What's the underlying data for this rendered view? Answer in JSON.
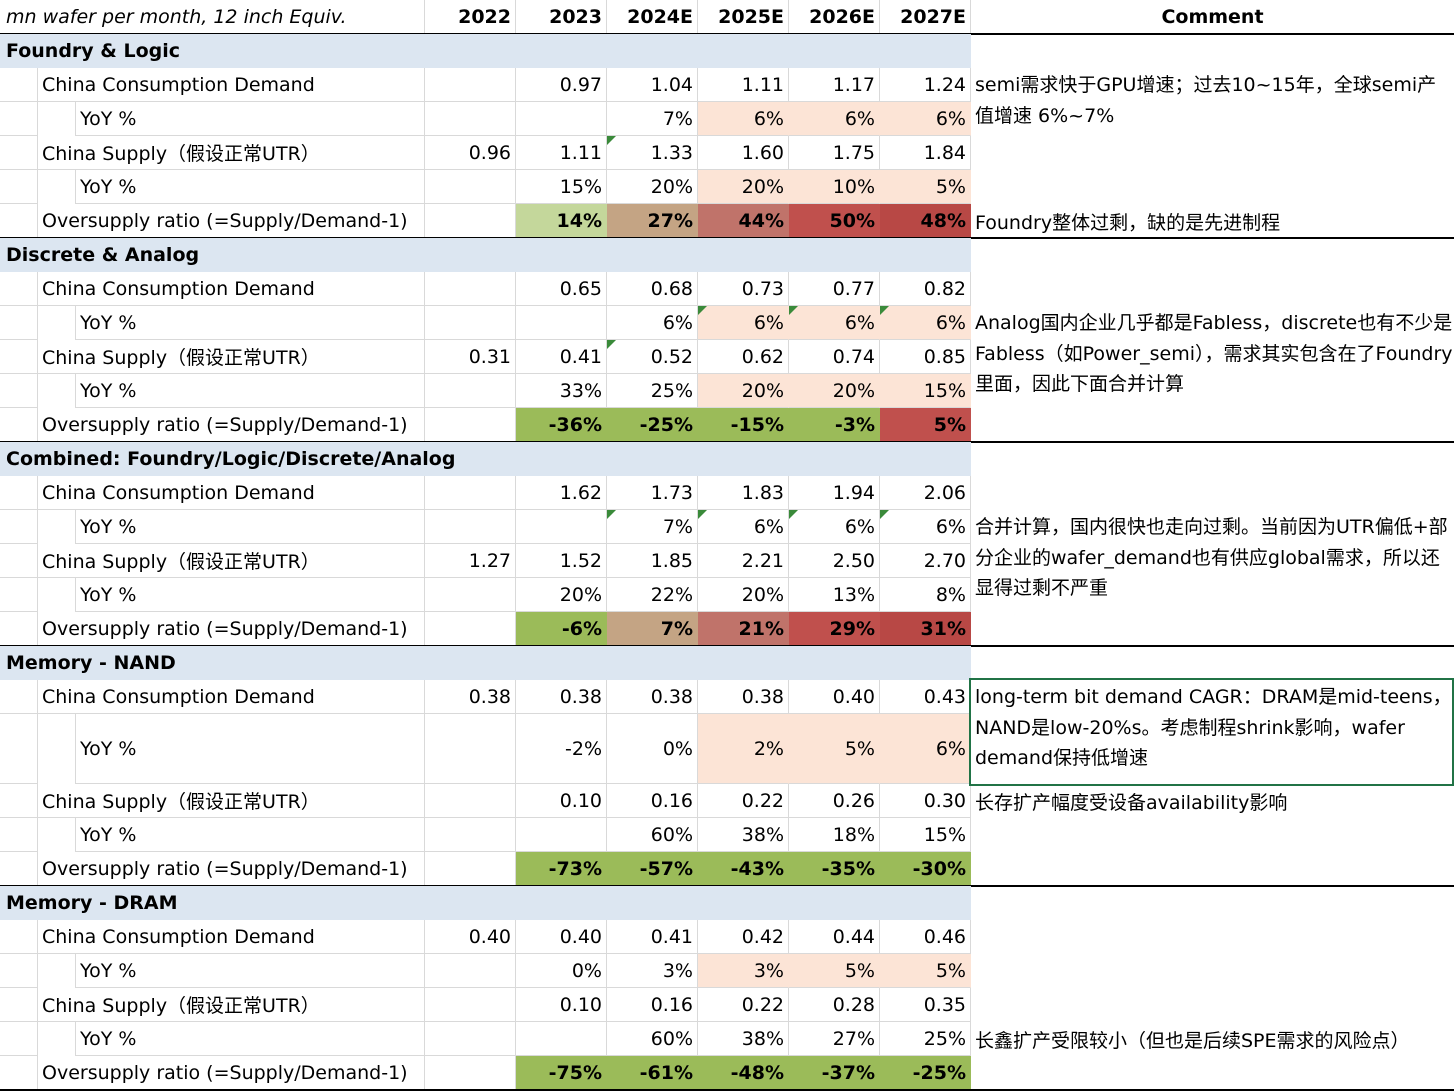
{
  "header": {
    "unit_label": "mn wafer per month, 12 inch Equiv.",
    "years": [
      "2022",
      "2023",
      "2024E",
      "2025E",
      "2026E",
      "2027E"
    ],
    "comment_label": "Comment"
  },
  "colors": {
    "section_bg": "#dce6f1",
    "light_peach": "#fce4d6",
    "green_light": "#c4d79b",
    "green": "#9bbb59",
    "tan": "#c4a484",
    "rose": "#c0736a",
    "red": "#c0504d",
    "red_dark": "#b84845"
  },
  "sections": [
    {
      "title": "Foundry & Logic",
      "rows": [
        {
          "label": "China Consumption Demand",
          "indent": 1,
          "values": [
            "",
            "0.97",
            "1.04",
            "1.11",
            "1.17",
            "1.24"
          ],
          "bg": [
            "",
            "",
            "",
            "",
            "",
            ""
          ],
          "bold": false
        },
        {
          "label": "YoY %",
          "indent": 2,
          "values": [
            "",
            "",
            "7%",
            "6%",
            "6%",
            "6%"
          ],
          "bg": [
            "",
            "",
            "",
            "light_peach",
            "light_peach",
            "light_peach"
          ],
          "bold": false
        },
        {
          "label": "China Supply（假设正常UTR）",
          "indent": 1,
          "values": [
            "0.96",
            "1.11",
            "1.33",
            "1.60",
            "1.75",
            "1.84"
          ],
          "bg": [
            "",
            "",
            "",
            "",
            "",
            ""
          ],
          "bold": false,
          "tri": [
            2
          ]
        },
        {
          "label": "YoY %",
          "indent": 2,
          "values": [
            "",
            "15%",
            "20%",
            "20%",
            "10%",
            "5%"
          ],
          "bg": [
            "",
            "",
            "",
            "light_peach",
            "light_peach",
            "light_peach"
          ],
          "bold": false
        },
        {
          "label": "Oversupply ratio (=Supply/Demand-1)",
          "indent": 1,
          "values": [
            "",
            "14%",
            "27%",
            "44%",
            "50%",
            "48%"
          ],
          "bg": [
            "",
            "green_light",
            "tan",
            "rose",
            "red",
            "red_dark"
          ],
          "bold": true
        }
      ],
      "comments": [
        {
          "text": "semi需求快于GPU增速；过去10~15年，全球semi产值增速 6%~7%",
          "row": 0,
          "span": 2
        },
        {
          "text": "Foundry整体过剩，缺的是先进制程",
          "row": 4,
          "span": 1
        }
      ]
    },
    {
      "title": "Discrete & Analog",
      "rows": [
        {
          "label": "China Consumption Demand",
          "indent": 1,
          "values": [
            "",
            "0.65",
            "0.68",
            "0.73",
            "0.77",
            "0.82"
          ],
          "bg": [
            "",
            "",
            "",
            "",
            "",
            ""
          ],
          "bold": false
        },
        {
          "label": "YoY %",
          "indent": 2,
          "values": [
            "",
            "",
            "6%",
            "6%",
            "6%",
            "6%"
          ],
          "bg": [
            "",
            "",
            "",
            "light_peach",
            "light_peach",
            "light_peach"
          ],
          "bold": false,
          "tri": [
            3,
            4,
            5
          ]
        },
        {
          "label": "China Supply（假设正常UTR）",
          "indent": 1,
          "values": [
            "0.31",
            "0.41",
            "0.52",
            "0.62",
            "0.74",
            "0.85"
          ],
          "bg": [
            "",
            "",
            "",
            "",
            "",
            ""
          ],
          "bold": false,
          "tri": [
            2
          ]
        },
        {
          "label": "YoY %",
          "indent": 2,
          "values": [
            "",
            "33%",
            "25%",
            "20%",
            "20%",
            "15%"
          ],
          "bg": [
            "",
            "",
            "",
            "light_peach",
            "light_peach",
            "light_peach"
          ],
          "bold": false
        },
        {
          "label": "Oversupply ratio (=Supply/Demand-1)",
          "indent": 1,
          "values": [
            "",
            "-36%",
            "-25%",
            "-15%",
            "-3%",
            "5%"
          ],
          "bg": [
            "",
            "green",
            "green",
            "green",
            "green",
            "red"
          ],
          "bold": true
        }
      ],
      "comments": [
        {
          "text": "Analog国内企业几乎都是Fabless，discrete也有不少是Fabless（如Power_semi），需求其实包含在了Foundry里面，因此下面合并计算",
          "row": 1,
          "span": 3
        }
      ]
    },
    {
      "title": "Combined: Foundry/Logic/Discrete/Analog",
      "rows": [
        {
          "label": "China Consumption Demand",
          "indent": 1,
          "values": [
            "",
            "1.62",
            "1.73",
            "1.83",
            "1.94",
            "2.06"
          ],
          "bg": [
            "",
            "",
            "",
            "",
            "",
            ""
          ],
          "bold": false
        },
        {
          "label": "YoY %",
          "indent": 2,
          "values": [
            "",
            "",
            "7%",
            "6%",
            "6%",
            "6%"
          ],
          "bg": [
            "",
            "",
            "",
            "",
            "",
            ""
          ],
          "bold": false,
          "tri": [
            2,
            3,
            4,
            5
          ]
        },
        {
          "label": "China Supply（假设正常UTR）",
          "indent": 1,
          "values": [
            "1.27",
            "1.52",
            "1.85",
            "2.21",
            "2.50",
            "2.70"
          ],
          "bg": [
            "",
            "",
            "",
            "",
            "",
            ""
          ],
          "bold": false
        },
        {
          "label": "YoY %",
          "indent": 2,
          "values": [
            "",
            "20%",
            "22%",
            "20%",
            "13%",
            "8%"
          ],
          "bg": [
            "",
            "",
            "",
            "",
            "",
            ""
          ],
          "bold": false
        },
        {
          "label": "Oversupply ratio (=Supply/Demand-1)",
          "indent": 1,
          "values": [
            "",
            "-6%",
            "7%",
            "21%",
            "29%",
            "31%"
          ],
          "bg": [
            "",
            "green",
            "tan",
            "rose",
            "red",
            "red_dark"
          ],
          "bold": true
        }
      ],
      "comments": [
        {
          "text": "合并计算，国内很快也走向过剩。当前因为UTR偏低+部分企业的wafer_demand也有供应global需求，所以还显得过剩不严重",
          "row": 1,
          "span": 3
        }
      ]
    },
    {
      "title": "Memory - NAND",
      "rows": [
        {
          "label": "China Consumption Demand",
          "indent": 1,
          "values": [
            "0.38",
            "0.38",
            "0.38",
            "0.38",
            "0.40",
            "0.43"
          ],
          "bg": [
            "",
            "",
            "",
            "",
            "",
            ""
          ],
          "bold": false
        },
        {
          "label": "YoY %",
          "indent": 2,
          "values": [
            "",
            "-2%",
            "0%",
            "2%",
            "5%",
            "6%"
          ],
          "bg": [
            "",
            "",
            "",
            "light_peach",
            "light_peach",
            "light_peach"
          ],
          "bold": false,
          "tall": true
        },
        {
          "label": "China Supply（假设正常UTR）",
          "indent": 1,
          "values": [
            "",
            "0.10",
            "0.16",
            "0.22",
            "0.26",
            "0.30"
          ],
          "bg": [
            "",
            "",
            "",
            "",
            "",
            ""
          ],
          "bold": false
        },
        {
          "label": "YoY %",
          "indent": 2,
          "values": [
            "",
            "",
            "60%",
            "38%",
            "18%",
            "15%"
          ],
          "bg": [
            "",
            "",
            "",
            "",
            "",
            ""
          ],
          "bold": false
        },
        {
          "label": "Oversupply ratio (=Supply/Demand-1)",
          "indent": 1,
          "values": [
            "",
            "-73%",
            "-57%",
            "-43%",
            "-35%",
            "-30%"
          ],
          "bg": [
            "",
            "green",
            "green",
            "green",
            "green",
            "green"
          ],
          "bold": true
        }
      ],
      "comments": [
        {
          "text": "long-term bit demand CAGR：DRAM是mid-teens，NAND是low-20%s。考虑制程shrink影响，wafer demand保持低增速",
          "row": 0,
          "span": 2,
          "selected": true
        },
        {
          "text": "长存扩产幅度受设备availability影响",
          "row": 2,
          "span": 1
        }
      ]
    },
    {
      "title": "Memory - DRAM",
      "rows": [
        {
          "label": "China Consumption Demand",
          "indent": 1,
          "values": [
            "0.40",
            "0.40",
            "0.41",
            "0.42",
            "0.44",
            "0.46"
          ],
          "bg": [
            "",
            "",
            "",
            "",
            "",
            ""
          ],
          "bold": false
        },
        {
          "label": "YoY %",
          "indent": 2,
          "values": [
            "",
            "0%",
            "3%",
            "3%",
            "5%",
            "5%"
          ],
          "bg": [
            "",
            "",
            "",
            "light_peach",
            "light_peach",
            "light_peach"
          ],
          "bold": false
        },
        {
          "label": "China Supply（假设正常UTR）",
          "indent": 1,
          "values": [
            "",
            "0.10",
            "0.16",
            "0.22",
            "0.28",
            "0.35"
          ],
          "bg": [
            "",
            "",
            "",
            "",
            "",
            ""
          ],
          "bold": false
        },
        {
          "label": "YoY %",
          "indent": 2,
          "values": [
            "",
            "",
            "60%",
            "38%",
            "27%",
            "25%"
          ],
          "bg": [
            "",
            "",
            "",
            "",
            "",
            ""
          ],
          "bold": false
        },
        {
          "label": "Oversupply ratio (=Supply/Demand-1)",
          "indent": 1,
          "values": [
            "",
            "-75%",
            "-61%",
            "-48%",
            "-37%",
            "-25%"
          ],
          "bg": [
            "",
            "green",
            "green",
            "green",
            "green",
            "green"
          ],
          "bold": true
        }
      ],
      "comments": [
        {
          "text": "长鑫扩产受限较小（但也是后续SPE需求的风险点）",
          "row": 3,
          "span": 1
        }
      ]
    }
  ]
}
